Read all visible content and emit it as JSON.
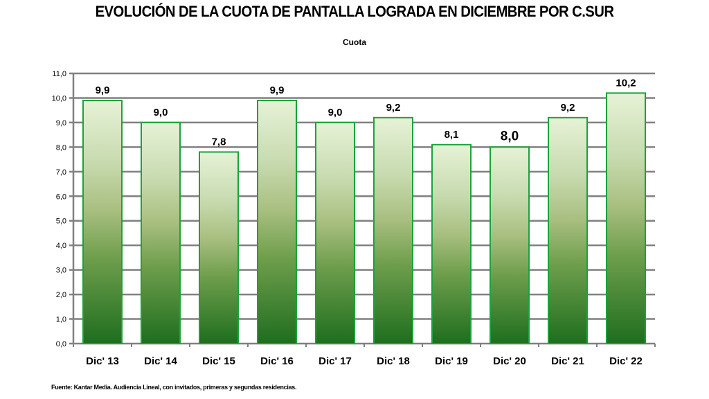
{
  "chart_data": {
    "type": "bar",
    "title": "EVOLUCIÓN DE LA CUOTA DE PANTALLA LOGRADA EN DICIEMBRE POR C.SUR",
    "subtitle": "Cuota",
    "xlabel": "",
    "ylabel": "",
    "categories": [
      "Dic' 13",
      "Dic' 14",
      "Dic' 15",
      "Dic' 16",
      "Dic' 17",
      "Dic' 18",
      "Dic' 19",
      "Dic' 20",
      "Dic' 21",
      "Dic' 22"
    ],
    "values": [
      9.9,
      9.0,
      7.8,
      9.9,
      9.0,
      9.2,
      8.1,
      8.0,
      9.2,
      10.2
    ],
    "data_labels": [
      "9,9",
      "9,0",
      "7,8",
      "9,9",
      "9,0",
      "9,2",
      "8,1",
      "8,0",
      "9,2",
      "10,2"
    ],
    "ylim": [
      0,
      11
    ],
    "yticks": [
      "0,0",
      "1,0",
      "2,0",
      "3,0",
      "4,0",
      "5,0",
      "6,0",
      "7,0",
      "8,0",
      "9,0",
      "10,0",
      "11,0"
    ],
    "grid": true,
    "legend": "none",
    "colors": {
      "bar_top": "#e6f2d6",
      "bar_mid": "#a9bf80",
      "bar_bottom": "#1e6e1e",
      "bar_border": "#1aa33a",
      "grid": "#808080"
    }
  },
  "footnote": "Fuente: Kantar Media. Audiencia Lineal, con invitados, primeras y segundas residencias."
}
